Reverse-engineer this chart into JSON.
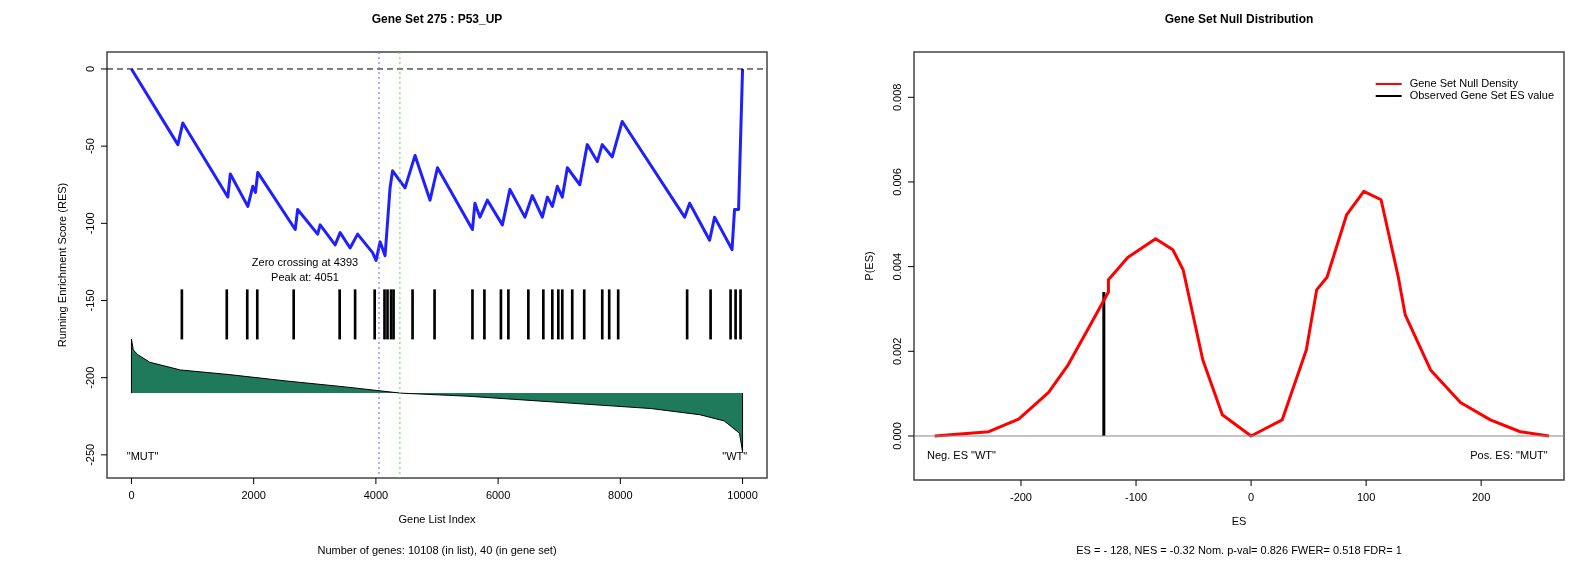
{
  "chart_data": [
    {
      "type": "line",
      "title": "Gene Set 275 : P53_UP",
      "xlabel": "Gene List Index",
      "ylabel": "Running Enrichment Score (RES)",
      "xlim": [
        -400,
        10400
      ],
      "ylim": [
        -265,
        11
      ],
      "xticks": [
        0,
        2000,
        4000,
        6000,
        8000,
        10000
      ],
      "yticks": [
        0,
        -50,
        -100,
        -150,
        -200,
        -250
      ],
      "grid": false,
      "legend": false,
      "series": [
        {
          "type": "line",
          "color": "#2020ff",
          "x": [
            0,
            760,
            840,
            1577,
            1618,
            1904,
            1986,
            2030,
            2067,
            2680,
            2720,
            3047,
            3088,
            3333,
            3415,
            3578,
            3701,
            3946,
            4003,
            4069,
            4150,
            4232,
            4273,
            4477,
            4641,
            4886,
            5008,
            5580,
            5621,
            5703,
            5825,
            6070,
            6193,
            6438,
            6560,
            6724,
            6806,
            6888,
            6969,
            7051,
            7133,
            7337,
            7459,
            7623,
            7704,
            7868,
            8031,
            9052,
            9134,
            9461,
            9542,
            9828,
            9869,
            9935,
            10000
          ],
          "values": [
            0,
            -49,
            -35,
            -83,
            -68,
            -89,
            -76,
            -80,
            -67,
            -104,
            -91,
            -107,
            -101,
            -114,
            -106,
            -116,
            -107,
            -119,
            -124,
            -112,
            -121,
            -77,
            -66,
            -77,
            -56,
            -85,
            -64,
            -104,
            -87,
            -96,
            -85,
            -101,
            -78,
            -96,
            -82,
            -96,
            -83,
            -89,
            -76,
            -83,
            -64,
            -75,
            -49,
            -60,
            -49,
            -57,
            -34,
            -96,
            -87,
            -111,
            -96,
            -117,
            -91,
            -91,
            0
          ]
        },
        {
          "type": "bar",
          "color": "#000000",
          "x": [
            825,
            1560,
            1895,
            2059,
            2655,
            3407,
            3660,
            3980,
            4141,
            4190,
            4248,
            4289,
            4600,
            4960,
            5580,
            5776,
            6046,
            6168,
            6495,
            6740,
            6887,
            6985,
            7050,
            7213,
            7409,
            7704,
            7818,
            7965,
            9093,
            9477,
            9804,
            9886,
            9967
          ],
          "base": [
            -175,
            -175,
            -175,
            -175,
            -175,
            -175,
            -175,
            -175,
            -175,
            -175,
            -175,
            -175,
            -175,
            -175,
            -175,
            -175,
            -175,
            -175,
            -175,
            -175,
            -175,
            -175,
            -175,
            -175,
            -175,
            -175,
            -175,
            -175,
            -175,
            -175,
            -175,
            -175,
            -175
          ],
          "values": [
            32,
            32,
            32,
            32,
            32,
            32,
            32,
            32,
            32,
            32,
            32,
            32,
            32,
            32,
            32,
            32,
            32,
            32,
            32,
            32,
            32,
            32,
            32,
            32,
            32,
            32,
            32,
            32,
            32,
            32,
            32,
            32,
            32
          ]
        },
        {
          "type": "area",
          "color": "#1e7a5a",
          "x": [
            0,
            0,
            30,
            100,
            300,
            800,
            1600,
            2500,
            3500,
            4400,
            5500,
            7000,
            8500,
            9300,
            9700,
            9950,
            10000,
            10000
          ],
          "values": [
            -210,
            -175,
            -182,
            -185,
            -190,
            -195,
            -198,
            -202,
            -206,
            -210,
            -212,
            -216,
            -220,
            -224,
            -228,
            -236,
            -248,
            -210
          ]
        }
      ],
      "ref_lines": [
        {
          "axis": "y",
          "value": 0,
          "line_style": "dashed",
          "color": "#000000"
        },
        {
          "axis": "x",
          "value": 4051,
          "line_style": "dotted",
          "color": "#6060ff"
        },
        {
          "axis": "x",
          "value": 4393,
          "line_style": "dotted",
          "color": "#60d060"
        }
      ],
      "annotations": [
        "Zero crossing at 4393",
        "Peak at: 4051",
        "\"MUT\"",
        "\"WT\"",
        "Number of genes: 10108 (in list), 40 (in gene set)"
      ]
    },
    {
      "type": "line",
      "title": "Gene Set Null Distribution",
      "xlabel": "ES",
      "ylabel": "P(ES)",
      "xlim": [
        -293,
        272
      ],
      "ylim": [
        -0.00104,
        0.00907
      ],
      "xticks": [
        -200,
        -100,
        0,
        100,
        200
      ],
      "yticks": [
        {
          "value": 0,
          "label": "0.000"
        },
        {
          "value": 0.002,
          "label": "0.002"
        },
        {
          "value": 0.004,
          "label": "0.004"
        },
        {
          "value": 0.006,
          "label": "0.006"
        },
        {
          "value": 0.008,
          "label": "0.008"
        }
      ],
      "grid": false,
      "legend": "top right",
      "series": [
        {
          "type": "line",
          "name": "Gene Set Null Density",
          "color": "#ff0000",
          "x": [
            -275,
            -228,
            -202,
            -176,
            -159,
            -141,
            -124,
            -124,
            -107,
            -83,
            -68,
            -59,
            -42,
            -25,
            0,
            27,
            48,
            57,
            66,
            83,
            98,
            113,
            128,
            134,
            156,
            182,
            208,
            234,
            259
          ],
          "values": [
            0,
            0.0001,
            0.0004,
            0.00103,
            0.00168,
            0.00256,
            0.0034,
            0.00369,
            0.00422,
            0.00466,
            0.0044,
            0.00392,
            0.0018,
            0.0005,
            0,
            0.00038,
            0.00203,
            0.00345,
            0.00375,
            0.00522,
            0.00578,
            0.00558,
            0.00375,
            0.00286,
            0.00156,
            0.00079,
            0.00038,
            0.0001,
            0
          ]
        },
        {
          "type": "line",
          "name": "Observed Gene Set ES value",
          "color": "#000000",
          "x": [
            -128,
            -128
          ],
          "values": [
            0,
            0.0034
          ]
        }
      ],
      "ref_lines": [
        {
          "axis": "y",
          "value": 0,
          "color": "#888888"
        }
      ],
      "annotations": [
        "Neg. ES \"WT\"",
        "Pos. ES: \"MUT\"",
        "ES = - 128, NES = -0.32 Nom. p-val= 0.826 FWER= 0.518 FDR= 1"
      ]
    }
  ]
}
